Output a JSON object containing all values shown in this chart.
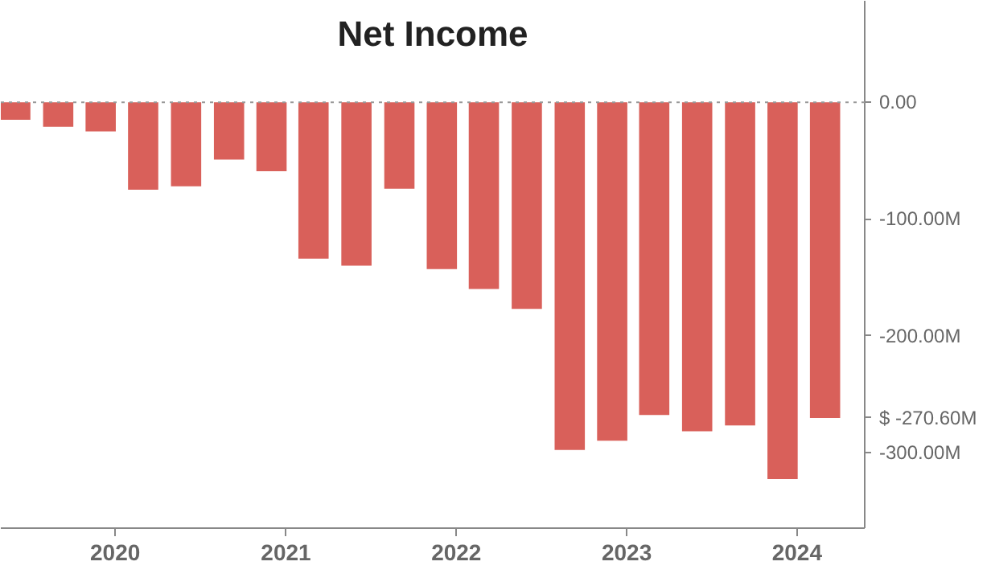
{
  "chart_data": {
    "type": "bar",
    "title": "Net Income",
    "x": [
      "2019-06",
      "2019-09",
      "2019-12",
      "2020-03",
      "2020-06",
      "2020-09",
      "2020-12",
      "2021-03",
      "2021-06",
      "2021-09",
      "2021-12",
      "2022-03",
      "2022-06",
      "2022-09",
      "2022-12",
      "2023-03",
      "2023-06",
      "2023-09",
      "2023-12",
      "2024-03"
    ],
    "values": [
      -15,
      -21,
      -25,
      -75,
      -72,
      -49,
      -59,
      -134,
      -140,
      -74,
      -143,
      -160,
      -177,
      -298,
      -290,
      -268,
      -282,
      -277,
      -323,
      -270.6
    ],
    "color": "#d9605a",
    "xlim": [
      "2019-05-01",
      "2024-05-25"
    ],
    "xticks": [
      {
        "value": "2020-01-01",
        "label": "2020"
      },
      {
        "value": "2021-01-01",
        "label": "2021"
      },
      {
        "value": "2022-01-01",
        "label": "2022"
      },
      {
        "value": "2023-01-01",
        "label": "2023"
      },
      {
        "value": "2024-01-01",
        "label": "2024"
      }
    ],
    "ylim": [
      -365,
      87
    ],
    "yticks": [
      {
        "value": 0,
        "label": "0.00"
      },
      {
        "value": -100,
        "label": "-100.00M"
      },
      {
        "value": -200,
        "label": "-200.00M"
      },
      {
        "value": -270.6,
        "label": "$ -270.60M"
      },
      {
        "value": -300,
        "label": "-300.00M"
      }
    ],
    "ref_lines": [
      {
        "axis": "y",
        "value": 0,
        "color": "#999999",
        "line_style": "dotted"
      }
    ],
    "grid": false
  }
}
